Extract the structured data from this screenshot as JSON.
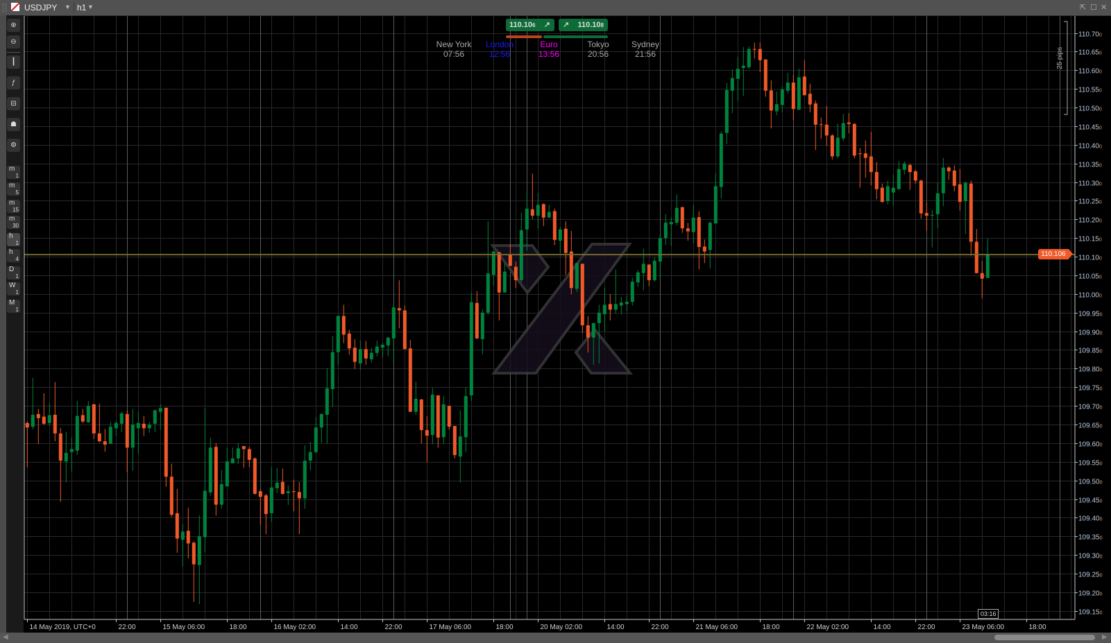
{
  "header": {
    "symbol": "USDJPY",
    "timeframe": "h1"
  },
  "toolbar": {
    "timeframes": [
      {
        "main": "m",
        "sub": "1"
      },
      {
        "main": "m",
        "sub": "5"
      },
      {
        "main": "m",
        "sub": "15"
      },
      {
        "main": "m",
        "sub": "30"
      },
      {
        "main": "h",
        "sub": "1"
      },
      {
        "main": "h",
        "sub": "4"
      },
      {
        "main": "D",
        "sub": "1"
      },
      {
        "main": "W",
        "sub": "1"
      },
      {
        "main": "M",
        "sub": "1"
      }
    ],
    "active_timeframe": "h1"
  },
  "trade": {
    "sell": {
      "price": "110.10",
      "pipette": "6"
    },
    "buy": {
      "price": "110.10",
      "pipette": "8"
    },
    "sentiment_sell_pct": 37,
    "sentiment_buy_pct": 63
  },
  "sessions": [
    {
      "name": "New York",
      "time": "07:56",
      "color": "#a8a8a8"
    },
    {
      "name": "London",
      "time": "12:56",
      "color": "#1a1aff"
    },
    {
      "name": "Euro",
      "time": "13:56",
      "color": "#ff00ff"
    },
    {
      "name": "Tokyo",
      "time": "20:56",
      "color": "#a8a8a8"
    },
    {
      "name": "Sydney",
      "time": "21:56",
      "color": "#a8a8a8"
    }
  ],
  "pips_ruler": "25 pips",
  "current_price": "110.106",
  "time_marker": "03:16",
  "colors": {
    "bull": "#00843d",
    "bear": "#f05a28",
    "bid_line": "#f05a28",
    "ask_line": "#00843d"
  },
  "chart_data": {
    "type": "candlestick",
    "symbol": "USDJPY",
    "timeframe": "h1",
    "ylim": [
      109.13,
      110.73
    ],
    "grid": true,
    "y_tick_labels": [
      "110.700",
      "110.650",
      "110.600",
      "110.550",
      "110.500",
      "110.450",
      "110.400",
      "110.350",
      "110.300",
      "110.250",
      "110.200",
      "110.150",
      "110.100",
      "110.050",
      "110.000",
      "109.950",
      "109.900",
      "109.850",
      "109.800",
      "109.750",
      "109.700",
      "109.650",
      "109.600",
      "109.550",
      "109.500",
      "109.450",
      "109.400",
      "109.350",
      "109.300",
      "109.250",
      "109.200",
      "109.150"
    ],
    "x_tick_labels": [
      "14 May 2019, UTC+0",
      "22:00",
      "15 May 06:00",
      "18:00",
      "16 May 02:00",
      "14:00",
      "22:00",
      "17 May 06:00",
      "18:00",
      "20 May 02:00",
      "14:00",
      "22:00",
      "21 May 06:00",
      "18:00",
      "22 May 02:00",
      "14:00",
      "22:00",
      "23 May 06:00",
      "18:00"
    ],
    "ohlc_order": [
      "open",
      "high",
      "low",
      "close"
    ],
    "candles": [
      [
        109.654,
        109.658,
        109.535,
        109.642
      ],
      [
        109.644,
        109.775,
        109.637,
        109.676
      ],
      [
        109.678,
        109.692,
        109.598,
        109.667
      ],
      [
        109.671,
        109.734,
        109.649,
        109.652
      ],
      [
        109.654,
        109.708,
        109.646,
        109.675
      ],
      [
        109.676,
        109.764,
        109.605,
        109.626
      ],
      [
        109.626,
        109.641,
        109.443,
        109.553
      ],
      [
        109.551,
        109.63,
        109.495,
        109.574
      ],
      [
        109.576,
        109.615,
        109.524,
        109.584
      ],
      [
        109.58,
        109.713,
        109.568,
        109.673
      ],
      [
        109.675,
        109.692,
        109.654,
        109.658
      ],
      [
        109.656,
        109.713,
        109.654,
        109.7
      ],
      [
        109.704,
        109.706,
        109.611,
        109.626
      ],
      [
        109.626,
        109.706,
        109.602,
        109.605
      ],
      [
        109.605,
        109.638,
        109.577,
        109.596
      ],
      [
        109.598,
        109.657,
        109.598,
        109.644
      ],
      [
        109.64,
        109.659,
        109.62,
        109.654
      ],
      [
        109.652,
        109.684,
        109.63,
        109.68
      ],
      [
        109.678,
        109.688,
        109.522,
        109.588
      ],
      [
        109.588,
        109.692,
        109.526,
        109.65
      ],
      [
        109.64,
        109.684,
        109.572,
        109.654
      ],
      [
        109.652,
        109.673,
        109.619,
        109.64
      ],
      [
        109.64,
        109.657,
        109.628,
        109.65
      ],
      [
        109.652,
        109.69,
        109.63,
        109.688
      ],
      [
        109.684,
        109.704,
        109.636,
        109.694
      ],
      [
        109.695,
        109.695,
        109.483,
        109.51
      ],
      [
        109.51,
        109.545,
        109.402,
        109.408
      ],
      [
        109.412,
        109.477,
        109.306,
        109.344
      ],
      [
        109.341,
        109.383,
        109.269,
        109.363
      ],
      [
        109.365,
        109.427,
        109.291,
        109.331
      ],
      [
        109.333,
        109.337,
        109.174,
        109.275
      ],
      [
        109.273,
        109.406,
        109.168,
        109.35
      ],
      [
        109.348,
        109.694,
        109.308,
        109.472
      ],
      [
        109.468,
        109.615,
        109.458,
        109.588
      ],
      [
        109.59,
        109.6,
        109.406,
        109.435
      ],
      [
        109.435,
        109.528,
        109.424,
        109.49
      ],
      [
        109.484,
        109.588,
        109.484,
        109.551
      ],
      [
        109.546,
        109.588,
        109.546,
        109.559
      ],
      [
        109.559,
        109.6,
        109.544,
        109.586
      ],
      [
        109.592,
        109.592,
        109.534,
        109.584
      ],
      [
        109.584,
        109.59,
        109.536,
        109.555
      ],
      [
        109.559,
        109.562,
        109.462,
        109.464
      ],
      [
        109.471,
        109.477,
        109.381,
        109.456
      ],
      [
        109.46,
        109.464,
        109.356,
        109.41
      ],
      [
        109.412,
        109.536,
        109.389,
        109.481
      ],
      [
        109.479,
        109.534,
        109.466,
        109.494
      ],
      [
        109.496,
        109.532,
        109.462,
        109.464
      ],
      [
        109.466,
        109.487,
        109.434,
        109.471
      ],
      [
        109.471,
        109.502,
        109.417,
        109.469
      ],
      [
        109.469,
        109.496,
        109.356,
        109.452
      ],
      [
        109.452,
        109.594,
        109.424,
        109.553
      ],
      [
        109.553,
        109.603,
        109.527,
        109.576
      ],
      [
        109.576,
        109.67,
        109.572,
        109.642
      ],
      [
        109.642,
        109.68,
        109.601,
        109.678
      ],
      [
        109.676,
        109.801,
        109.599,
        109.747
      ],
      [
        109.745,
        109.887,
        109.697,
        109.844
      ],
      [
        109.844,
        109.943,
        109.81,
        109.941
      ],
      [
        109.941,
        109.971,
        109.868,
        109.891
      ],
      [
        109.894,
        109.904,
        109.837,
        109.854
      ],
      [
        109.856,
        109.879,
        109.799,
        109.818
      ],
      [
        109.814,
        109.875,
        109.797,
        109.852
      ],
      [
        109.852,
        109.874,
        109.81,
        109.827
      ],
      [
        109.825,
        109.855,
        109.816,
        109.842
      ],
      [
        109.842,
        109.875,
        109.833,
        109.859
      ],
      [
        109.856,
        109.868,
        109.829,
        109.864
      ],
      [
        109.862,
        109.885,
        109.833,
        109.883
      ],
      [
        109.881,
        109.977,
        109.814,
        109.964
      ],
      [
        109.962,
        110.037,
        109.908,
        109.956
      ],
      [
        109.956,
        109.969,
        109.852,
        109.852
      ],
      [
        109.854,
        109.877,
        109.684,
        109.684
      ],
      [
        109.684,
        109.765,
        109.676,
        109.719
      ],
      [
        109.717,
        109.719,
        109.599,
        109.635
      ],
      [
        109.635,
        109.672,
        109.549,
        109.62
      ],
      [
        109.622,
        109.748,
        109.597,
        109.73
      ],
      [
        109.728,
        109.728,
        109.588,
        109.615
      ],
      [
        109.616,
        109.726,
        109.599,
        109.704
      ],
      [
        109.7,
        109.7,
        109.636,
        109.644
      ],
      [
        109.646,
        109.646,
        109.559,
        109.568
      ],
      [
        109.564,
        109.688,
        109.494,
        109.618
      ],
      [
        109.616,
        109.75,
        109.576,
        109.726
      ],
      [
        109.728,
        110.004,
        109.713,
        109.978
      ],
      [
        109.976,
        110.008,
        109.879,
        109.881
      ],
      [
        109.879,
        109.958,
        109.838,
        109.95
      ],
      [
        109.95,
        110.195,
        109.944,
        110.055
      ],
      [
        110.051,
        110.114,
        110.022,
        110.114
      ],
      [
        110.112,
        110.112,
        109.929,
        110.004
      ],
      [
        110.004,
        110.083,
        110.004,
        110.06
      ],
      [
        110.105,
        110.133,
        110.075,
        110.075
      ],
      [
        110.073,
        110.087,
        110.016,
        110.037
      ],
      [
        110.037,
        110.218,
        110.031,
        110.171
      ],
      [
        110.173,
        110.271,
        110.116,
        110.229
      ],
      [
        110.227,
        110.323,
        110.201,
        110.21
      ],
      [
        110.21,
        110.271,
        110.176,
        110.239
      ],
      [
        110.241,
        110.243,
        110.182,
        110.205
      ],
      [
        110.205,
        110.239,
        110.203,
        110.22
      ],
      [
        110.222,
        110.229,
        110.131,
        110.145
      ],
      [
        110.143,
        110.18,
        110.109,
        110.173
      ],
      [
        110.175,
        110.195,
        110.051,
        110.11
      ],
      [
        110.114,
        110.169,
        109.999,
        110.016
      ],
      [
        110.014,
        110.085,
        110.006,
        110.083
      ],
      [
        110.081,
        110.081,
        109.895,
        109.916
      ],
      [
        109.916,
        109.941,
        109.843,
        109.883
      ],
      [
        109.883,
        109.922,
        109.81,
        109.922
      ],
      [
        109.922,
        109.971,
        109.814,
        109.95
      ],
      [
        109.946,
        110.017,
        109.9,
        109.971
      ],
      [
        109.973,
        110.0,
        109.929,
        109.958
      ],
      [
        109.958,
        110.066,
        109.948,
        109.973
      ],
      [
        109.969,
        109.992,
        109.945,
        109.977
      ],
      [
        109.973,
        109.996,
        109.954,
        109.979
      ],
      [
        109.979,
        110.044,
        109.969,
        110.033
      ],
      [
        110.031,
        110.064,
        110.019,
        110.058
      ],
      [
        110.056,
        110.122,
        110.01,
        110.081
      ],
      [
        110.079,
        110.079,
        110.021,
        110.037
      ],
      [
        110.037,
        110.098,
        110.033,
        110.089
      ],
      [
        110.087,
        110.164,
        110.041,
        110.15
      ],
      [
        110.15,
        110.214,
        110.131,
        110.191
      ],
      [
        110.187,
        110.206,
        110.129,
        110.193
      ],
      [
        110.191,
        110.267,
        110.184,
        110.231
      ],
      [
        110.233,
        110.233,
        110.164,
        110.176
      ],
      [
        110.176,
        110.191,
        110.143,
        110.168
      ],
      [
        110.166,
        110.239,
        110.135,
        110.205
      ],
      [
        110.206,
        110.222,
        110.066,
        110.126
      ],
      [
        110.127,
        110.146,
        110.083,
        110.114
      ],
      [
        110.118,
        110.195,
        110.068,
        110.191
      ],
      [
        110.189,
        110.323,
        110.189,
        110.289
      ],
      [
        110.287,
        110.437,
        110.256,
        110.43
      ],
      [
        110.432,
        110.566,
        110.402,
        110.547
      ],
      [
        110.545,
        110.602,
        110.485,
        110.579
      ],
      [
        110.577,
        110.636,
        110.518,
        110.604
      ],
      [
        110.606,
        110.662,
        110.531,
        110.612
      ],
      [
        110.608,
        110.664,
        110.604,
        110.657
      ],
      [
        110.657,
        110.674,
        110.631,
        110.655
      ],
      [
        110.657,
        110.674,
        110.595,
        110.627
      ],
      [
        110.629,
        110.629,
        110.529,
        110.545
      ],
      [
        110.546,
        110.573,
        110.444,
        110.492
      ],
      [
        110.49,
        110.543,
        110.479,
        110.509
      ],
      [
        110.507,
        110.556,
        110.487,
        110.548
      ],
      [
        110.545,
        110.593,
        110.537,
        110.567
      ],
      [
        110.567,
        110.587,
        110.466,
        110.496
      ],
      [
        110.494,
        110.604,
        110.494,
        110.581
      ],
      [
        110.583,
        110.627,
        110.533,
        110.533
      ],
      [
        110.537,
        110.564,
        110.487,
        110.508
      ],
      [
        110.511,
        110.519,
        110.386,
        110.454
      ],
      [
        110.455,
        110.473,
        110.416,
        110.454
      ],
      [
        110.454,
        110.504,
        110.397,
        110.425
      ],
      [
        110.425,
        110.429,
        110.36,
        110.369
      ],
      [
        110.369,
        110.457,
        110.364,
        110.419
      ],
      [
        110.417,
        110.483,
        110.41,
        110.458
      ],
      [
        110.46,
        110.485,
        110.431,
        110.456
      ],
      [
        110.456,
        110.458,
        110.364,
        110.371
      ],
      [
        110.377,
        110.392,
        110.285,
        110.375
      ],
      [
        110.377,
        110.412,
        110.312,
        110.365
      ],
      [
        110.369,
        110.435,
        110.291,
        110.327
      ],
      [
        110.327,
        110.354,
        110.254,
        110.281
      ],
      [
        110.285,
        110.296,
        110.245,
        110.247
      ],
      [
        110.249,
        110.304,
        110.241,
        110.289
      ],
      [
        110.272,
        110.32,
        110.237,
        110.285
      ],
      [
        110.281,
        110.356,
        110.281,
        110.335
      ],
      [
        110.333,
        110.356,
        110.32,
        110.35
      ],
      [
        110.346,
        110.35,
        110.279,
        110.327
      ],
      [
        110.329,
        110.333,
        110.296,
        110.304
      ],
      [
        110.304,
        110.307,
        110.202,
        110.216
      ],
      [
        110.217,
        110.246,
        110.17,
        110.21
      ],
      [
        110.21,
        110.225,
        110.125,
        110.212
      ],
      [
        110.214,
        110.298,
        110.176,
        110.27
      ],
      [
        110.27,
        110.365,
        110.235,
        110.339
      ],
      [
        110.339,
        110.343,
        110.306,
        110.329
      ],
      [
        110.331,
        110.345,
        110.275,
        110.29
      ],
      [
        110.294,
        110.335,
        110.223,
        110.247
      ],
      [
        110.249,
        110.302,
        110.161,
        110.298
      ],
      [
        110.296,
        110.304,
        110.103,
        110.14
      ],
      [
        110.14,
        110.174,
        110.055,
        110.056
      ],
      [
        110.056,
        110.089,
        109.988,
        110.041
      ],
      [
        110.043,
        110.148,
        110.043,
        110.106
      ]
    ]
  }
}
